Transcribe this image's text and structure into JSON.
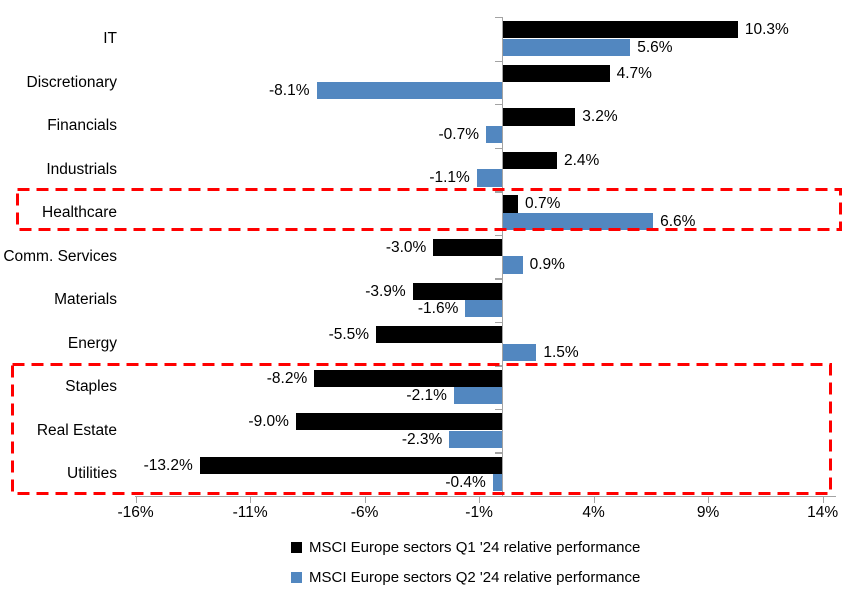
{
  "chart_data": {
    "type": "bar",
    "orientation": "horizontal",
    "title": "",
    "background": "#FFFFFF",
    "grid": false,
    "axis_color": "#A3A3A3",
    "categories": [
      "IT",
      "Discretionary",
      "Financials",
      "Industrials",
      "Healthcare",
      "Comm. Services",
      "Materials",
      "Energy",
      "Staples",
      "Real Estate",
      "Utilities"
    ],
    "series": [
      {
        "name": "MSCI Europe sectors Q1 '24 relative performance",
        "color": "#000000",
        "values": [
          10.3,
          4.7,
          3.2,
          2.4,
          0.7,
          -3.0,
          -3.9,
          -5.5,
          -8.2,
          -9.0,
          -13.2
        ],
        "labels": [
          "10.3%",
          "4.7%",
          "3.2%",
          "2.4%",
          "0.7%",
          "-3.0%",
          "-3.9%",
          "-5.5%",
          "-8.2%",
          "-9.0%",
          "-13.2%"
        ]
      },
      {
        "name": "MSCI Europe sectors Q2 '24 relative performance",
        "color": "#5287C0",
        "values": [
          5.6,
          -8.1,
          -0.7,
          -1.1,
          6.6,
          0.9,
          -1.6,
          1.5,
          -2.1,
          -2.3,
          -0.4
        ],
        "labels": [
          "5.6%",
          "-8.1%",
          "-0.7%",
          "-1.1%",
          "6.6%",
          "0.9%",
          "-1.6%",
          "1.5%",
          "-2.1%",
          "-2.3%",
          "-0.4%"
        ]
      }
    ],
    "x_axis": {
      "unit": "%",
      "min": -16,
      "max": 14.6,
      "tick_values": [
        -16,
        -11,
        -6,
        -1,
        4,
        9,
        14
      ],
      "tick_labels": [
        "-16%",
        "-11%",
        "-6%",
        "-1%",
        "4%",
        "9%",
        "14%"
      ]
    },
    "legend_position": "bottom",
    "highlights": {
      "color": "#FF0000",
      "style": "dashed",
      "boxes": [
        {
          "sectors": [
            "Healthcare"
          ]
        },
        {
          "sectors": [
            "Staples",
            "Real Estate",
            "Utilities"
          ]
        }
      ]
    }
  }
}
